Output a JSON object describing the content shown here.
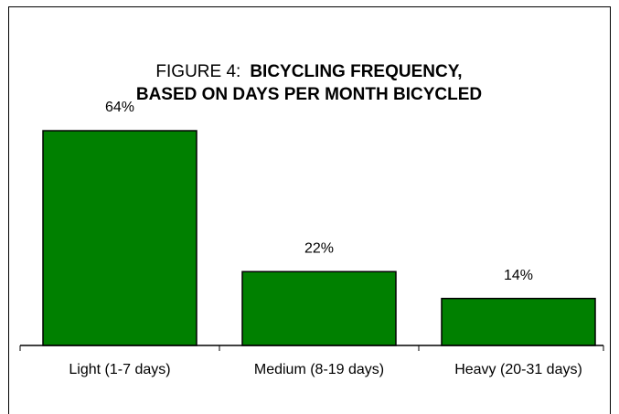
{
  "chart_data": {
    "type": "bar",
    "figure_label": "FIGURE 4:",
    "title": [
      "BICYCLING FREQUENCY,",
      "BASED ON DAYS PER MONTH BICYCLED"
    ],
    "categories": [
      "Light  (1-7 days)",
      "Medium (8-19 days)",
      "Heavy (20-31 days)"
    ],
    "values": [
      64,
      22,
      14
    ],
    "value_labels": [
      "64%",
      "22%",
      "14%"
    ],
    "color": "#008000",
    "ylim": [
      0,
      70
    ]
  }
}
